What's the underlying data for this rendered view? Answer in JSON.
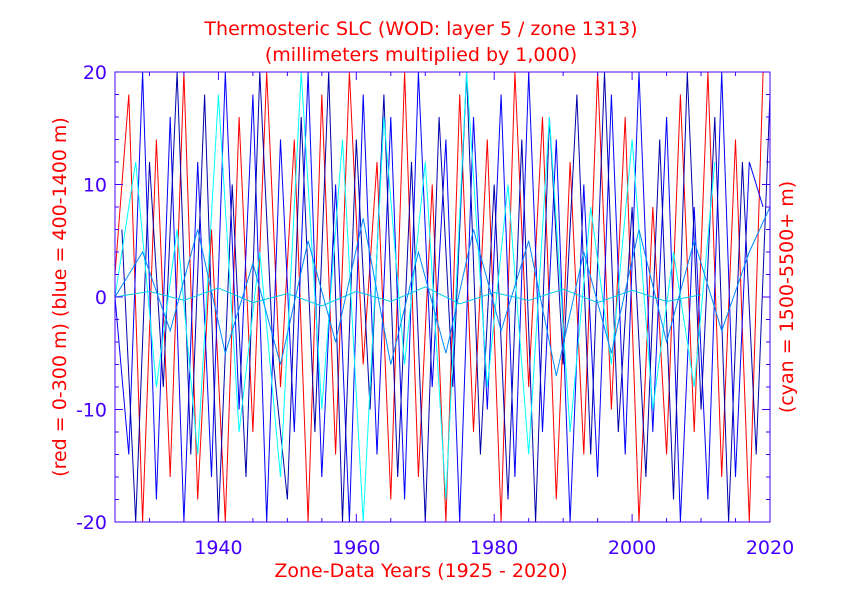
{
  "chart_data": {
    "type": "line",
    "title": "Thermosteric SLC (WOD: layer 5 / zone 1313)",
    "subtitle": "(millimeters multiplied by 1,000)",
    "xlabel": "Zone-Data Years (1925 - 2020)",
    "ylabel_left": "(red = 0-300 m)  (blue = 400-1400 m)",
    "ylabel_right": "(cyan = 1500-5500+ m)",
    "xlim": [
      1925,
      2020
    ],
    "ylim": [
      -20,
      20
    ],
    "x_ticks": [
      1940,
      1960,
      1980,
      2000,
      2020
    ],
    "y_ticks": [
      -20,
      -10,
      0,
      10,
      20
    ],
    "x_tick_labels": [
      "1940",
      "1960",
      "1980",
      "2000",
      "2020"
    ],
    "y_tick_labels": [
      "-20",
      "-10",
      "0",
      "10",
      "20"
    ],
    "grid": false,
    "colors": {
      "axis": "#4400ff",
      "tick_label": "#4400ff",
      "title": "#ff0000",
      "red_series": "#ff0000",
      "blue_series": "#0000ff",
      "dark_blue_series": "#0000aa",
      "cyan_series": "#00ffff",
      "light_blue_series": "#0088ff"
    },
    "series": [
      {
        "name": "red = 0-300 m",
        "color": "#ff0000",
        "x": [
          1925,
          1927,
          1929,
          1931,
          1933,
          1935,
          1937,
          1939,
          1941,
          1943,
          1945,
          1947,
          1949,
          1951,
          1953,
          1955,
          1957,
          1959,
          1961,
          1963,
          1965,
          1967,
          1969,
          1971,
          1973,
          1975,
          1977,
          1979,
          1981,
          1983,
          1985,
          1987,
          1989,
          1991,
          1993,
          1995,
          1997,
          1999,
          2001,
          2003,
          2005,
          2007,
          2009,
          2011,
          2013,
          2015,
          2017,
          2019
        ],
        "values": [
          2,
          18,
          -20,
          14,
          -16,
          20,
          -18,
          6,
          -20,
          16,
          -12,
          20,
          -8,
          14,
          -20,
          18,
          -14,
          20,
          -6,
          12,
          -18,
          20,
          -16,
          10,
          -20,
          18,
          -12,
          14,
          -20,
          20,
          -8,
          16,
          -18,
          12,
          -14,
          20,
          -10,
          16,
          -20,
          8,
          -14,
          18,
          -12,
          20,
          -16,
          14,
          -20,
          20
        ]
      },
      {
        "name": "blue = 400-1400 m",
        "color": "#0000ff",
        "x": [
          1925,
          1927,
          1929,
          1931,
          1933,
          1935,
          1937,
          1939,
          1941,
          1943,
          1945,
          1947,
          1949,
          1951,
          1953,
          1955,
          1957,
          1959,
          1961,
          1963,
          1965,
          1967,
          1969,
          1971,
          1973,
          1975,
          1977,
          1979,
          1981,
          1983,
          1985,
          1987,
          1989,
          1991,
          1993,
          1995,
          1997,
          1999,
          2001,
          2003,
          2005,
          2007,
          2009,
          2011,
          2013,
          2015,
          2017,
          2019
        ],
        "values": [
          0,
          -14,
          20,
          -18,
          16,
          -20,
          12,
          -16,
          20,
          -10,
          18,
          -20,
          14,
          -12,
          20,
          -16,
          10,
          -20,
          18,
          -14,
          16,
          -18,
          20,
          -8,
          14,
          -20,
          16,
          -10,
          18,
          -16,
          20,
          -12,
          14,
          -20,
          10,
          -16,
          18,
          -14,
          20,
          -12,
          16,
          -20,
          8,
          -18,
          20,
          -16,
          12,
          8
        ]
      },
      {
        "name": "blue = 400-1400 m (b)",
        "color": "#0000aa",
        "x": [
          1926,
          1928,
          1930,
          1932,
          1934,
          1936,
          1938,
          1940,
          1942,
          1944,
          1946,
          1948,
          1950,
          1952,
          1954,
          1956,
          1958,
          1960,
          1962,
          1964,
          1966,
          1968,
          1970,
          1972,
          1974,
          1976,
          1978,
          1980,
          1982,
          1984,
          1986,
          1988,
          1990,
          1992,
          1994,
          1996,
          1998,
          2000,
          2002,
          2004,
          2006,
          2008,
          2010,
          2012,
          2014,
          2016,
          2018,
          2020
        ],
        "values": [
          6,
          -20,
          12,
          -8,
          20,
          -14,
          18,
          -20,
          10,
          -16,
          20,
          -6,
          -18,
          16,
          -12,
          20,
          -20,
          14,
          -10,
          18,
          -16,
          12,
          -20,
          16,
          -8,
          20,
          -14,
          10,
          -18,
          14,
          -20,
          16,
          -6,
          18,
          -14,
          20,
          -12,
          8,
          -16,
          14,
          -18,
          20,
          -10,
          16,
          -20,
          12,
          -14,
          18
        ]
      },
      {
        "name": "cyan = 1500-5500+ m",
        "color": "#00ffff",
        "x": [
          1925,
          1928,
          1931,
          1934,
          1937,
          1940,
          1943,
          1946,
          1949,
          1952,
          1955,
          1958,
          1961,
          1964,
          1967,
          1970,
          1973,
          1976,
          1979,
          1982,
          1985,
          1988,
          1991,
          1994,
          1997,
          2000,
          2003,
          2006,
          2009,
          2012
        ],
        "values": [
          0,
          12,
          -8,
          6,
          -14,
          18,
          -12,
          4,
          -16,
          20,
          -10,
          14,
          -20,
          16,
          -6,
          12,
          -18,
          20,
          -8,
          10,
          -14,
          16,
          -12,
          8,
          -6,
          14,
          -10,
          4,
          -8,
          12
        ]
      },
      {
        "name": "cyan = 1500-5500+ m (b)",
        "color": "#00ccee",
        "x": [
          1925,
          1930,
          1935,
          1940,
          1945,
          1950,
          1955,
          1960,
          1965,
          1970,
          1975,
          1980,
          1985,
          1990,
          1995,
          2000,
          2005,
          2010
        ],
        "values": [
          0,
          0.5,
          -0.3,
          0.8,
          -0.5,
          0.3,
          -0.8,
          0.5,
          -0.4,
          0.9,
          -0.6,
          0.4,
          -0.3,
          0.7,
          -0.5,
          0.6,
          -0.4,
          0.2
        ]
      },
      {
        "name": "blue = 400-1400 m (c)",
        "color": "#0088ff",
        "x": [
          1925,
          1929,
          1933,
          1937,
          1941,
          1945,
          1949,
          1953,
          1957,
          1961,
          1965,
          1969,
          1973,
          1977,
          1981,
          1985,
          1989,
          1993,
          1997,
          2001,
          2005,
          2009,
          2013,
          2017,
          2020
        ],
        "values": [
          0,
          4,
          -3,
          6,
          -5,
          3,
          -6,
          5,
          -4,
          7,
          -6,
          4,
          -5,
          6,
          -3,
          5,
          -7,
          4,
          -5,
          6,
          -4,
          5,
          -3,
          4,
          8
        ]
      }
    ]
  }
}
